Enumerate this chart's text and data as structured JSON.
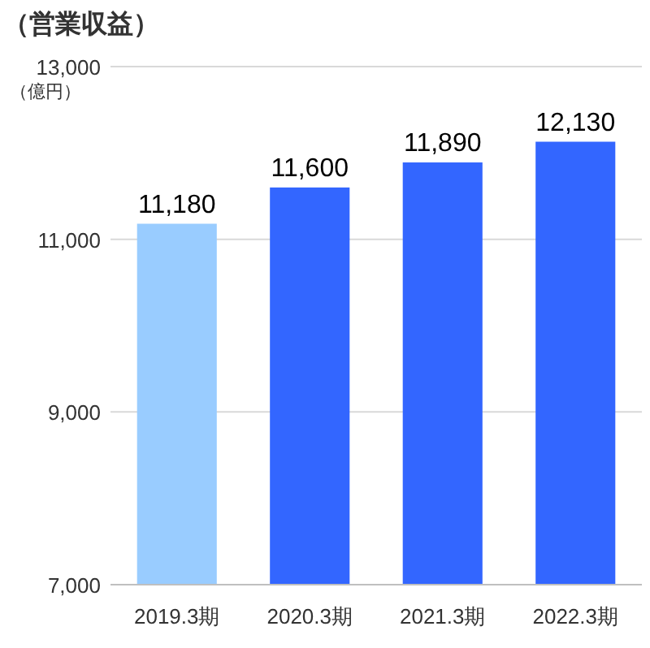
{
  "chart_data": {
    "type": "bar",
    "title": "（営業収益）",
    "ylabel": "（億円）",
    "categories": [
      "2019.3期",
      "2020.3期",
      "2021.3期",
      "2022.3期"
    ],
    "values": [
      11180,
      11600,
      11890,
      12130
    ],
    "colors": [
      "#99ccff",
      "#3366ff",
      "#3366ff",
      "#3366ff"
    ],
    "ylim": [
      7000,
      13000
    ],
    "yticks": [
      {
        "value": 7000,
        "label": "7,000"
      },
      {
        "value": 9000,
        "label": "9,000"
      },
      {
        "value": 11000,
        "label": "11,000"
      },
      {
        "value": 13000,
        "label": "13,000"
      }
    ],
    "value_labels": [
      "11,180",
      "11,600",
      "11,890",
      "12,130"
    ],
    "grid": "y"
  }
}
